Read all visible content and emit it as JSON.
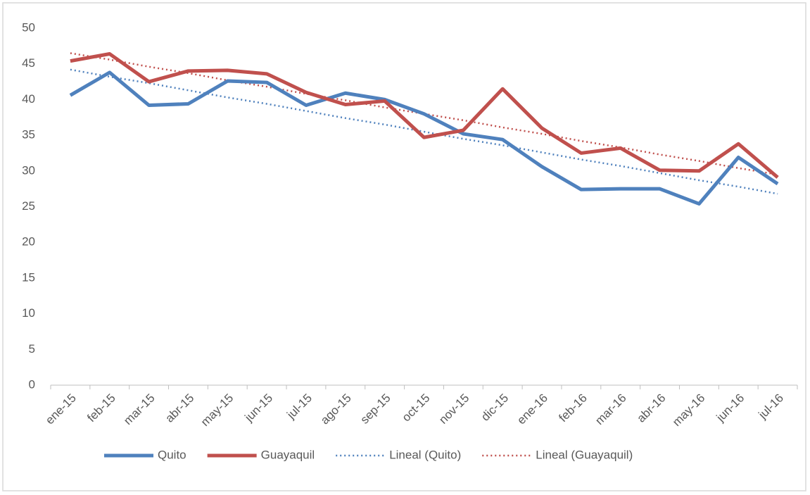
{
  "chart_data": {
    "type": "line",
    "categories": [
      "ene-15",
      "feb-15",
      "mar-15",
      "abr-15",
      "may-15",
      "jun-15",
      "jul-15",
      "ago-15",
      "sep-15",
      "oct-15",
      "nov-15",
      "dic-15",
      "ene-16",
      "feb-16",
      "mar-16",
      "abr-16",
      "may-16",
      "jun-16",
      "jul-16"
    ],
    "series": [
      {
        "name": "Quito",
        "color": "#4f81bd",
        "style": "solid",
        "values": [
          40.6,
          43.8,
          39.2,
          39.4,
          42.6,
          42.4,
          39.2,
          40.9,
          40.0,
          38.0,
          35.2,
          34.4,
          30.6,
          27.4,
          27.5,
          27.5,
          25.4,
          31.9,
          28.2
        ]
      },
      {
        "name": "Guayaquil",
        "color": "#c0504d",
        "style": "solid",
        "values": [
          45.4,
          46.4,
          42.5,
          44.0,
          44.1,
          43.6,
          41.0,
          39.3,
          39.8,
          34.7,
          35.7,
          41.5,
          36.0,
          32.5,
          33.2,
          30.1,
          30.0,
          33.8,
          29.1
        ]
      },
      {
        "name": "Lineal (Quito)",
        "color": "#4f81bd",
        "style": "dotted",
        "values": [
          44.2,
          43.2,
          42.3,
          41.3,
          40.3,
          39.4,
          38.4,
          37.4,
          36.5,
          35.5,
          34.5,
          33.6,
          32.6,
          31.6,
          30.7,
          29.7,
          28.7,
          27.8,
          26.8
        ]
      },
      {
        "name": "Lineal (Guayaquil)",
        "color": "#c0504d",
        "style": "dotted",
        "values": [
          46.5,
          45.6,
          44.6,
          43.7,
          42.7,
          41.8,
          40.8,
          39.9,
          38.9,
          38.0,
          37.1,
          36.1,
          35.2,
          34.2,
          33.3,
          32.3,
          31.4,
          30.4,
          29.5
        ]
      }
    ],
    "ylim": [
      0,
      50
    ],
    "yticks": [
      0,
      5,
      10,
      15,
      20,
      25,
      30,
      35,
      40,
      45,
      50
    ],
    "grid": false,
    "legend": "bottom"
  }
}
